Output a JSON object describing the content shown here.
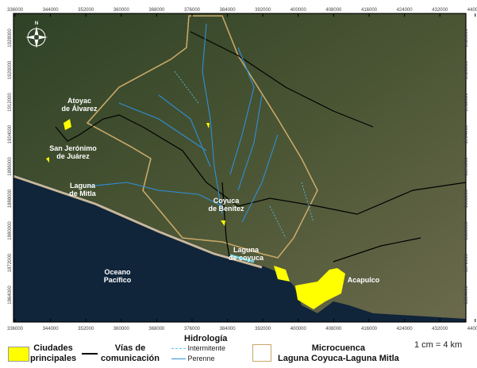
{
  "axes": {
    "x_ticks": [
      "336000",
      "344000",
      "352000",
      "360000",
      "368000",
      "376000",
      "384000",
      "392000",
      "400000",
      "408000",
      "416000",
      "424000",
      "432000",
      "440000"
    ],
    "y_ticks": [
      "1928000",
      "1920000",
      "1912000",
      "1904000",
      "1896000",
      "1888000",
      "1880000",
      "1872000",
      "1864000"
    ]
  },
  "places": [
    {
      "name": "Atoyac\nde Álvarez",
      "l1": "Atoyac",
      "l2": "de Álvarez"
    },
    {
      "l1": "San Jerónimo",
      "l2": "de Juárez"
    },
    {
      "l1": "Laguna",
      "l2": "de Mitla"
    },
    {
      "l1": "Coyuca",
      "l2": "de Benítez"
    },
    {
      "l1": "Laguna",
      "l2": "de coyuca"
    },
    {
      "l1": "Oceano",
      "l2": "Pacífico"
    },
    {
      "l1": "Acapulco",
      "l2": ""
    }
  ],
  "legend": {
    "cities_l1": "Ciudades",
    "cities_l2": "principales",
    "roads_l1": "Vías de",
    "roads_l2": "comunicación",
    "hydro_title": "Hidrología",
    "hydro_intermittent": "Intermitente",
    "hydro_perennial": "Perenne",
    "basin_l1": "Microcuenca",
    "basin_l2": "Laguna Coyuca-Laguna Mitla",
    "scale": "1 cm = 4 km"
  },
  "colors": {
    "cities": "#ffff00",
    "roads": "#000000",
    "intermittent": "#5bc8f0",
    "perennial": "#2f8fd8",
    "basin": "#c8a868",
    "ocean": "#0f2436",
    "land": "#3a4a2a"
  },
  "north_arrow": "N"
}
